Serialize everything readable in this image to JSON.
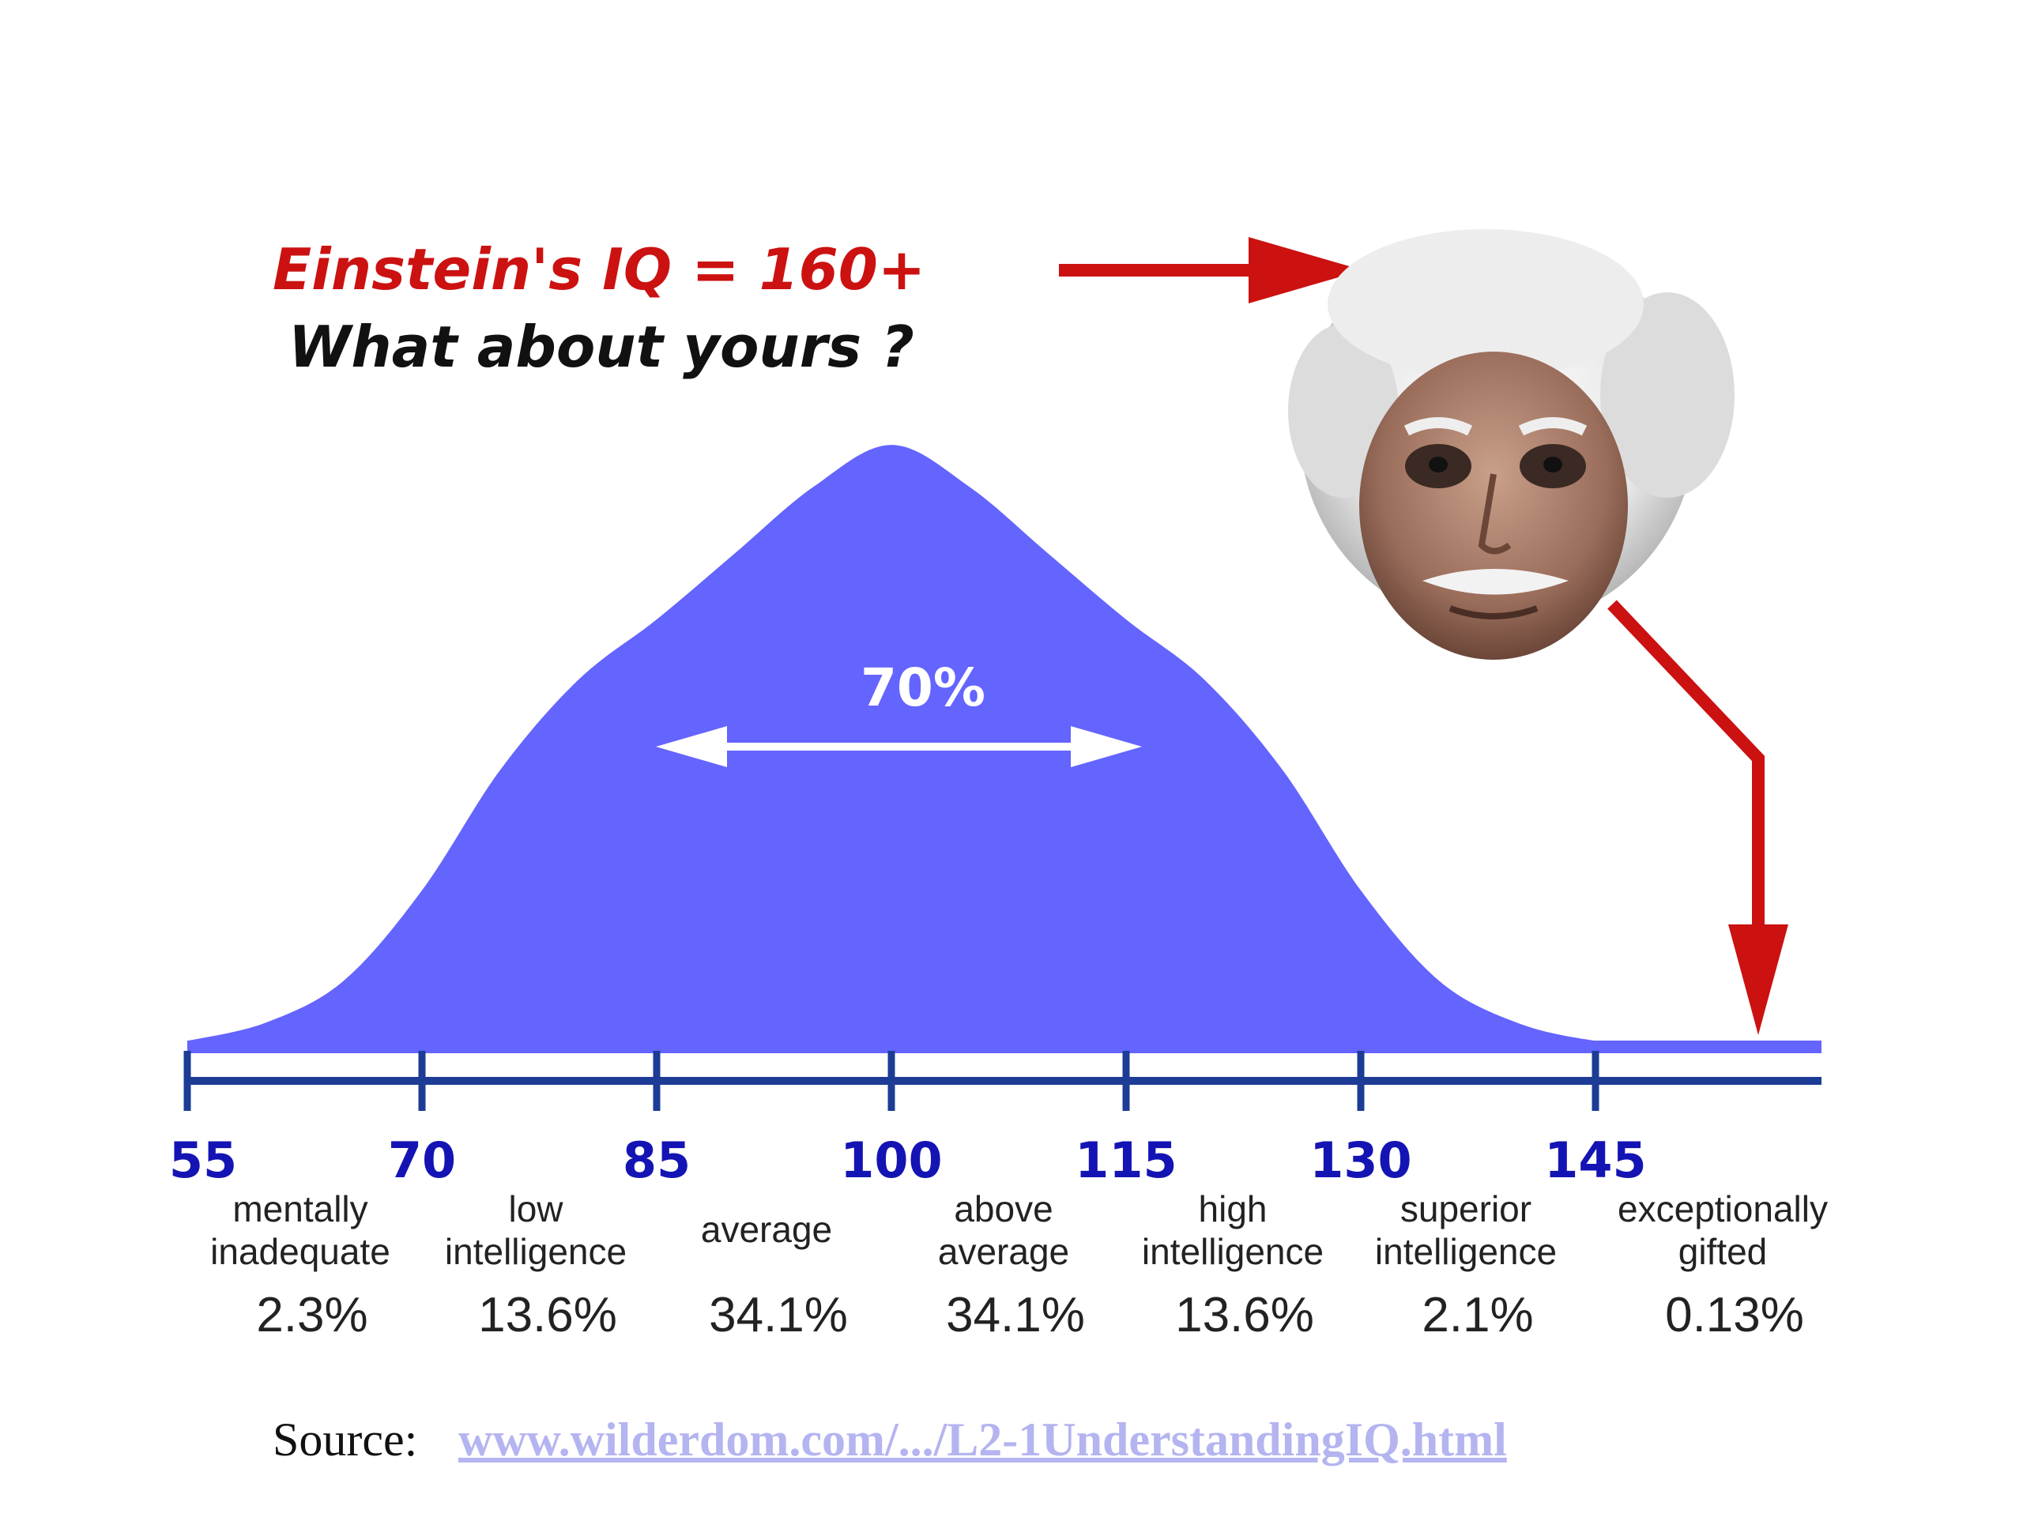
{
  "headline": {
    "line1": "Einstein's IQ = 160+",
    "line2": "What about yours ?"
  },
  "colors": {
    "curve": "#6464ff",
    "axis": "#1c3c96",
    "tick_label": "#1414b4",
    "headline_red": "#cc1111",
    "headline_black": "#111111",
    "arrow_red": "#cc1111",
    "link": "#b4b4f0"
  },
  "image": {
    "name": "einstein-portrait"
  },
  "source": {
    "prefix": "Source:",
    "link_text": "www.wilderdom.com/.../L2-1UnderstandingIQ.html"
  },
  "chart_data": {
    "type": "area",
    "x": [
      55,
      60,
      65,
      70,
      75,
      80,
      85,
      90,
      95,
      100,
      105,
      110,
      115,
      120,
      125,
      130,
      135,
      140,
      145,
      150,
      155,
      160
    ],
    "values": [
      0.01,
      0.04,
      0.11,
      0.26,
      0.46,
      0.61,
      0.71,
      0.82,
      0.93,
      1.0,
      0.93,
      0.82,
      0.71,
      0.61,
      0.46,
      0.26,
      0.11,
      0.04,
      0.01,
      0.0,
      0.0,
      0.0
    ],
    "xlim": [
      55,
      160
    ],
    "ylim": [
      0,
      1.05
    ],
    "ticks": [
      55,
      70,
      85,
      100,
      115,
      130,
      145
    ],
    "tick_labels": [
      "55",
      "70",
      "85",
      "100",
      "115",
      "130",
      "145"
    ],
    "annotation": {
      "label": "70%",
      "from": 85,
      "to": 115
    },
    "marker": {
      "value": 160,
      "label": "Einstein's IQ = 160+"
    },
    "categories": [
      {
        "label": [
          "mentally",
          "inadequate"
        ],
        "percent": "2.3%",
        "center": 62.5
      },
      {
        "label": [
          "low",
          "intelligence"
        ],
        "percent": "13.6%",
        "center": 77.5
      },
      {
        "label": [
          "average"
        ],
        "percent": "34.1%",
        "center": 92.5
      },
      {
        "label": [
          "above",
          "average"
        ],
        "percent": "34.1%",
        "center": 107.5
      },
      {
        "label": [
          "high",
          "intelligence"
        ],
        "percent": "13.6%",
        "center": 122.5
      },
      {
        "label": [
          "superior",
          "intelligence"
        ],
        "percent": "2.1%",
        "center": 137.5
      },
      {
        "label": [
          "exceptionally",
          "gifted"
        ],
        "percent": "0.13%",
        "center": 152.5
      }
    ],
    "grid": false,
    "legend": "none"
  }
}
